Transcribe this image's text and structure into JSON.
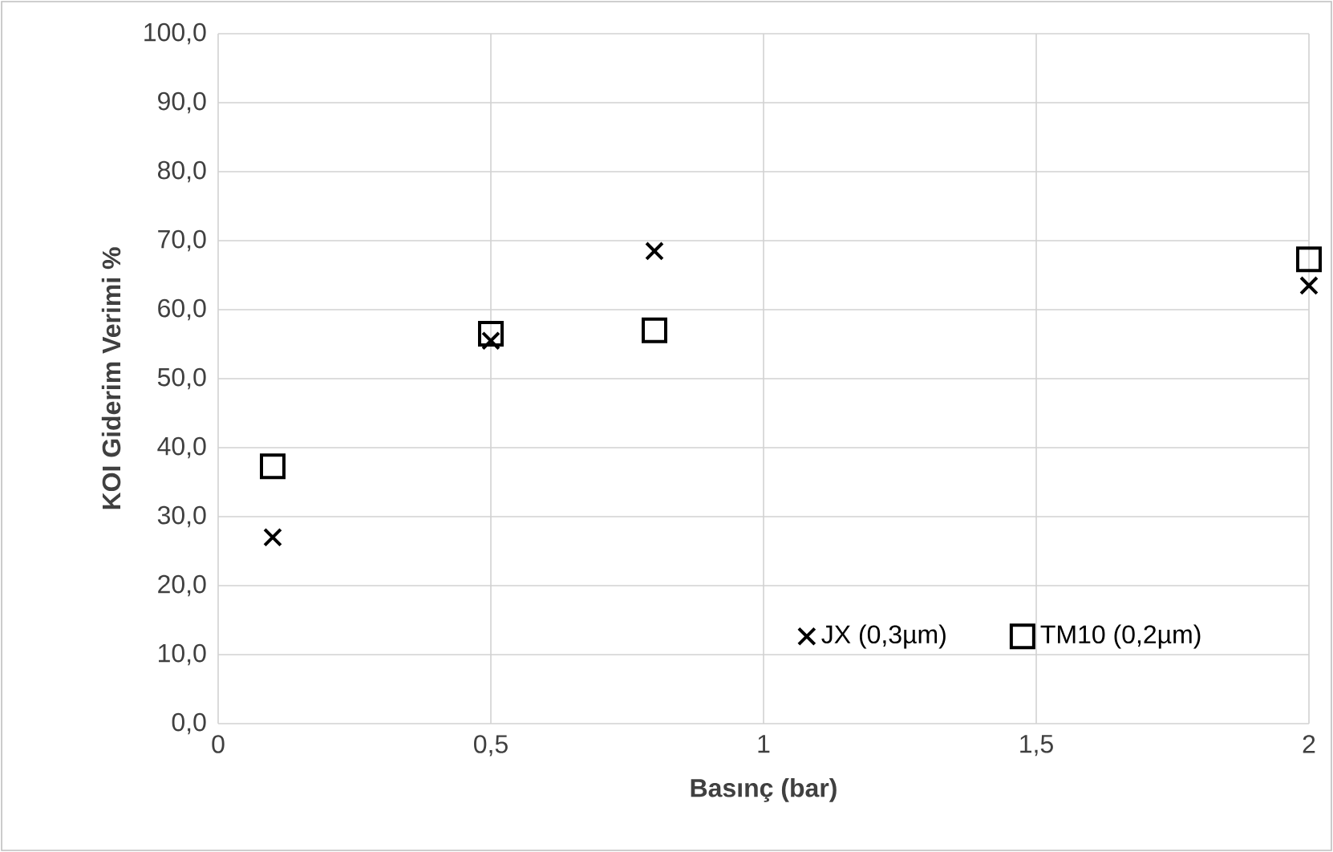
{
  "chart_data": {
    "type": "scatter",
    "xlabel": "Basınç (bar)",
    "ylabel": "KOI Giderim Verimi %",
    "xlim": [
      0,
      2
    ],
    "ylim": [
      0,
      100
    ],
    "xticks": [
      0,
      {
        "value": 0.5,
        "label": "0,5"
      },
      1,
      {
        "value": 1.5,
        "label": "1,5"
      },
      2
    ],
    "yticks": [
      {
        "value": 0,
        "label": "0,0"
      },
      {
        "value": 10,
        "label": "10,0"
      },
      {
        "value": 20,
        "label": "20,0"
      },
      {
        "value": 30,
        "label": "30,0"
      },
      {
        "value": 40,
        "label": "40,0"
      },
      {
        "value": 50,
        "label": "50,0"
      },
      {
        "value": 60,
        "label": "60,0"
      },
      {
        "value": 70,
        "label": "70,0"
      },
      {
        "value": 80,
        "label": "80,0"
      },
      {
        "value": 90,
        "label": "90,0"
      },
      {
        "value": 100,
        "label": "100,0"
      }
    ],
    "grid": true,
    "legend": "bottom",
    "x": [
      0.1,
      0.5,
      0.8,
      2
    ],
    "series": [
      {
        "name": "JX (0,3µm)",
        "color": "#000000",
        "marker": "cross",
        "values": [
          27,
          55.5,
          68.5,
          63.5
        ]
      },
      {
        "name": "TM10 (0,2µm)",
        "color": "#000000",
        "marker": "square",
        "values": [
          37.3,
          56.5,
          57,
          67.3
        ]
      }
    ]
  }
}
